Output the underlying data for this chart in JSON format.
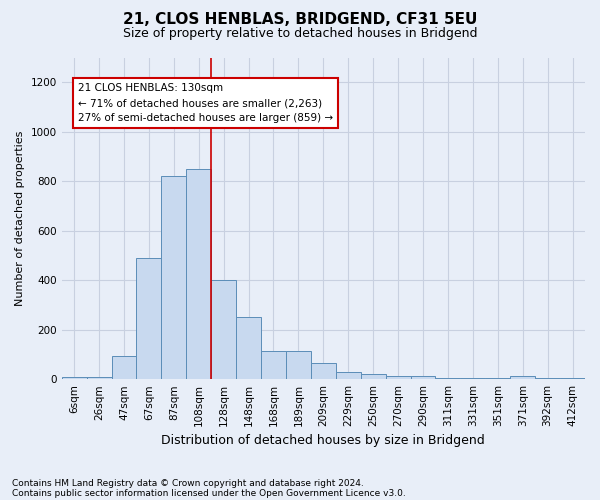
{
  "title1": "21, CLOS HENBLAS, BRIDGEND, CF31 5EU",
  "title2": "Size of property relative to detached houses in Bridgend",
  "xlabel": "Distribution of detached houses by size in Bridgend",
  "ylabel": "Number of detached properties",
  "footnote1": "Contains HM Land Registry data © Crown copyright and database right 2024.",
  "footnote2": "Contains public sector information licensed under the Open Government Licence v3.0.",
  "annotation_line1": "21 CLOS HENBLAS: 130sqm",
  "annotation_line2": "← 71% of detached houses are smaller (2,263)",
  "annotation_line3": "27% of semi-detached houses are larger (859) →",
  "bar_color": "#c8d9ef",
  "bar_edge_color": "#5b8db8",
  "vline_color": "#cc0000",
  "vline_x_index": 6,
  "categories": [
    "6sqm",
    "26sqm",
    "47sqm",
    "67sqm",
    "87sqm",
    "108sqm",
    "128sqm",
    "148sqm",
    "168sqm",
    "189sqm",
    "209sqm",
    "229sqm",
    "250sqm",
    "270sqm",
    "290sqm",
    "311sqm",
    "331sqm",
    "351sqm",
    "371sqm",
    "392sqm",
    "412sqm"
  ],
  "values": [
    10,
    10,
    95,
    490,
    820,
    850,
    400,
    250,
    115,
    115,
    65,
    30,
    20,
    12,
    12,
    5,
    5,
    5,
    12,
    5,
    5
  ],
  "ylim": [
    0,
    1300
  ],
  "yticks": [
    0,
    200,
    400,
    600,
    800,
    1000,
    1200
  ],
  "grid_color": "#c8d0e0",
  "bg_color": "#e8eef8",
  "plot_bg_color": "#e8eef8",
  "title1_fontsize": 11,
  "title2_fontsize": 9,
  "xlabel_fontsize": 9,
  "ylabel_fontsize": 8,
  "tick_fontsize": 7.5,
  "annotation_fontsize": 7.5,
  "footnote_fontsize": 6.5
}
